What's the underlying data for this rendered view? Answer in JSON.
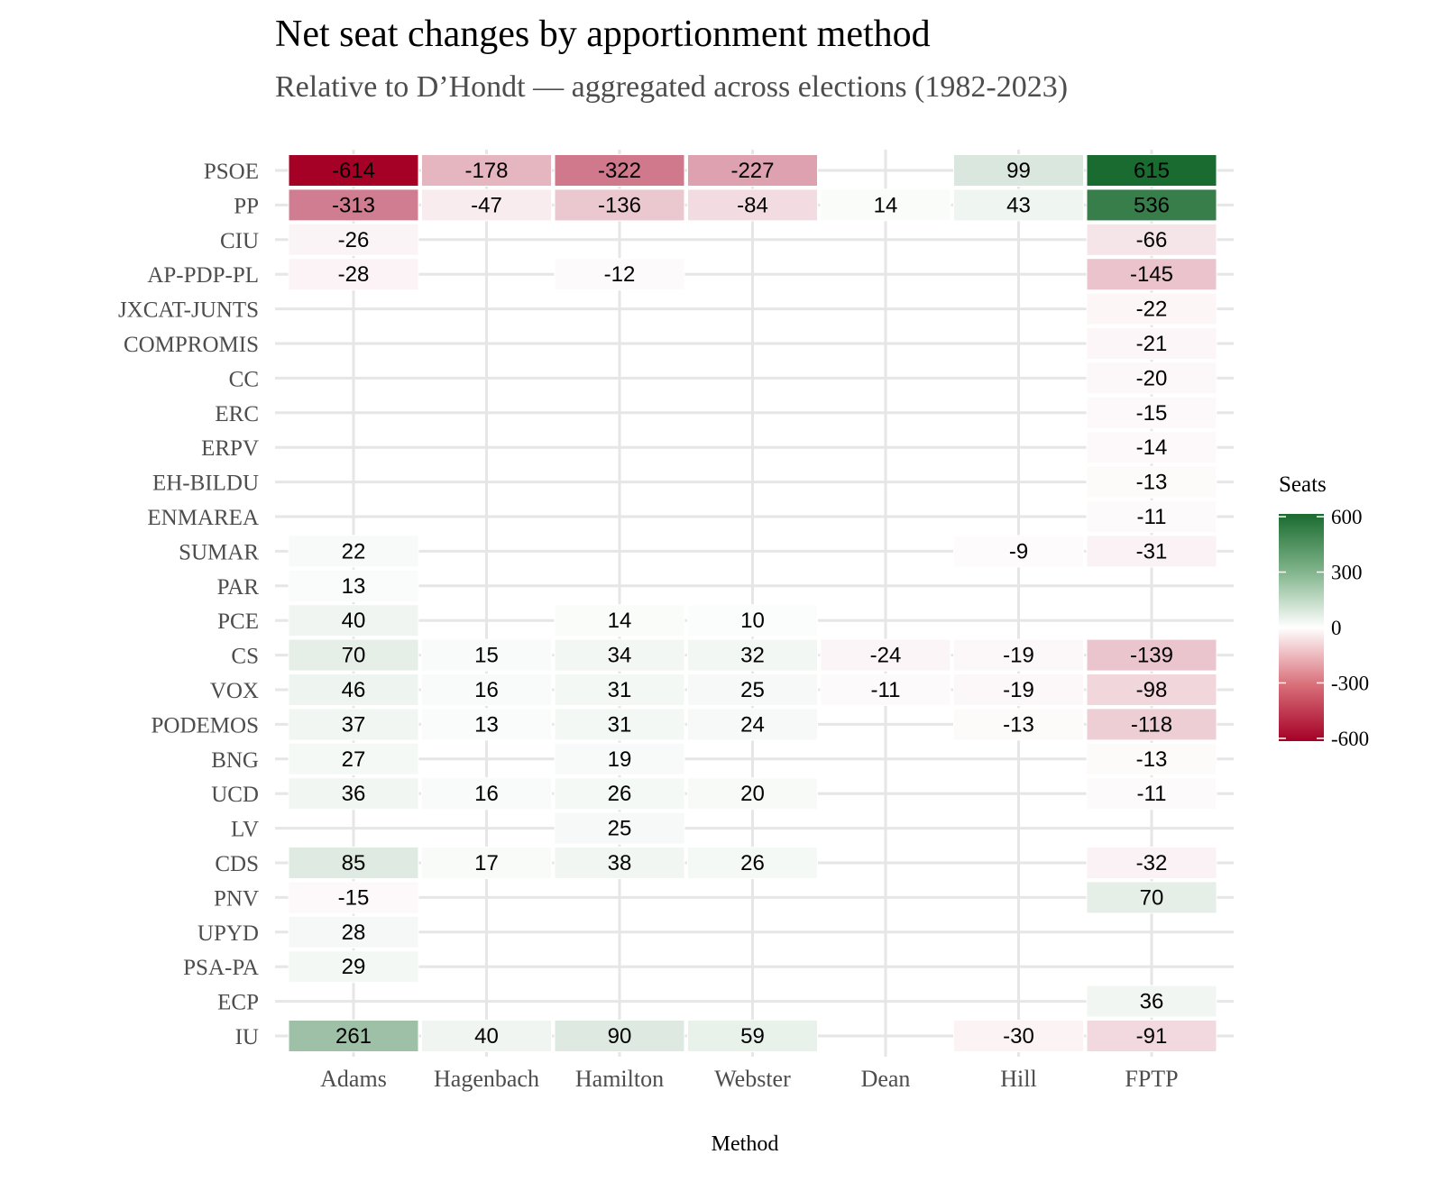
{
  "chart_data": {
    "type": "heatmap",
    "title": "Net seat changes by apportionment method",
    "subtitle": "Relative to D’Hondt — aggregated across elections (1982-2023)",
    "xlabel": "Method",
    "x_categories": [
      "Adams",
      "Hagenbach",
      "Hamilton",
      "Webster",
      "Dean",
      "Hill",
      "FPTP"
    ],
    "y_categories": [
      "PSOE",
      "PP",
      "CIU",
      "AP-PDP-PL",
      "JXCAT-JUNTS",
      "COMPROMIS",
      "CC",
      "ERC",
      "ERPV",
      "EH-BILDU",
      "ENMAREA",
      "SUMAR",
      "PAR",
      "PCE",
      "CS",
      "VOX",
      "PODEMOS",
      "BNG",
      "UCD",
      "LV",
      "CDS",
      "PNV",
      "UPYD",
      "PSA-PA",
      "ECP",
      "IU"
    ],
    "values": [
      [
        -614,
        -178,
        -322,
        -227,
        null,
        99,
        615
      ],
      [
        -313,
        -47,
        -136,
        -84,
        14,
        43,
        536
      ],
      [
        -26,
        null,
        null,
        null,
        null,
        null,
        -66
      ],
      [
        -28,
        null,
        -12,
        null,
        null,
        null,
        -145
      ],
      [
        null,
        null,
        null,
        null,
        null,
        null,
        -22
      ],
      [
        null,
        null,
        null,
        null,
        null,
        null,
        -21
      ],
      [
        null,
        null,
        null,
        null,
        null,
        null,
        -20
      ],
      [
        null,
        null,
        null,
        null,
        null,
        null,
        -15
      ],
      [
        null,
        null,
        null,
        null,
        null,
        null,
        -14
      ],
      [
        null,
        null,
        null,
        null,
        null,
        null,
        -13
      ],
      [
        null,
        null,
        null,
        null,
        null,
        null,
        -11
      ],
      [
        22,
        null,
        null,
        null,
        null,
        -9,
        -31
      ],
      [
        13,
        null,
        null,
        null,
        null,
        null,
        null
      ],
      [
        40,
        null,
        14,
        10,
        null,
        null,
        null
      ],
      [
        70,
        15,
        34,
        32,
        -24,
        -19,
        -139
      ],
      [
        46,
        16,
        31,
        25,
        -11,
        -19,
        -98
      ],
      [
        37,
        13,
        31,
        24,
        null,
        -13,
        -118
      ],
      [
        27,
        null,
        19,
        null,
        null,
        null,
        -13
      ],
      [
        36,
        16,
        26,
        20,
        null,
        null,
        -11
      ],
      [
        null,
        null,
        25,
        null,
        null,
        null,
        null
      ],
      [
        85,
        17,
        38,
        26,
        null,
        null,
        -32
      ],
      [
        -15,
        null,
        null,
        null,
        null,
        null,
        70
      ],
      [
        28,
        null,
        null,
        null,
        null,
        null,
        null
      ],
      [
        29,
        null,
        null,
        null,
        null,
        null,
        null
      ],
      [
        null,
        null,
        null,
        null,
        null,
        null,
        36
      ],
      [
        261,
        40,
        90,
        59,
        null,
        -30,
        -91
      ]
    ],
    "legend": {
      "title": "Seats",
      "ticks": [
        "600",
        "300",
        "0",
        "-300",
        "-600"
      ],
      "tick_values": [
        600,
        300,
        0,
        -300,
        -600
      ],
      "placement": "right",
      "range": [
        -615,
        615
      ],
      "colors": {
        "low": "#a50026",
        "mid": "#ffffff",
        "high": "#1a6b30"
      }
    },
    "grid": true
  }
}
